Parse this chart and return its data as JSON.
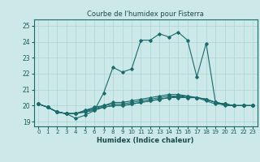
{
  "title": "Courbe de l'humidex pour Fisterra",
  "xlabel": "Humidex (Indice chaleur)",
  "bg_color": "#cce8e8",
  "line_color": "#1a6b6b",
  "grid_color": "#aad4d4",
  "xlim": [
    -0.5,
    23.5
  ],
  "ylim": [
    18.7,
    25.4
  ],
  "xticks": [
    0,
    1,
    2,
    3,
    4,
    5,
    6,
    7,
    8,
    9,
    10,
    11,
    12,
    13,
    14,
    15,
    16,
    17,
    18,
    19,
    20,
    21,
    22,
    23
  ],
  "yticks": [
    19,
    20,
    21,
    22,
    23,
    24,
    25
  ],
  "series": [
    [
      20.1,
      19.9,
      19.6,
      19.5,
      19.2,
      19.4,
      19.7,
      20.8,
      22.4,
      22.1,
      22.3,
      24.1,
      24.1,
      24.5,
      24.3,
      24.6,
      24.1,
      21.8,
      23.9,
      20.2,
      20.0,
      20.0,
      20.0,
      20.0
    ],
    [
      20.1,
      19.9,
      19.6,
      19.5,
      19.5,
      19.6,
      19.7,
      19.9,
      20.0,
      20.0,
      20.1,
      20.2,
      20.3,
      20.4,
      20.5,
      20.5,
      20.5,
      20.5,
      20.4,
      20.2,
      20.1,
      20.0,
      20.0,
      20.0
    ],
    [
      20.1,
      19.9,
      19.6,
      19.5,
      19.5,
      19.6,
      19.8,
      19.9,
      20.0,
      20.0,
      20.1,
      20.2,
      20.3,
      20.4,
      20.5,
      20.6,
      20.5,
      20.5,
      20.3,
      20.1,
      20.1,
      20.0,
      20.0,
      20.0
    ],
    [
      20.1,
      19.9,
      19.6,
      19.5,
      19.5,
      19.7,
      19.8,
      20.0,
      20.1,
      20.1,
      20.2,
      20.3,
      20.4,
      20.5,
      20.6,
      20.6,
      20.6,
      20.5,
      20.4,
      20.2,
      20.1,
      20.0,
      20.0,
      20.0
    ],
    [
      20.1,
      19.9,
      19.6,
      19.5,
      19.5,
      19.7,
      19.9,
      20.0,
      20.2,
      20.2,
      20.3,
      20.4,
      20.5,
      20.6,
      20.7,
      20.7,
      20.6,
      20.5,
      20.4,
      20.2,
      20.1,
      20.0,
      20.0,
      20.0
    ]
  ]
}
